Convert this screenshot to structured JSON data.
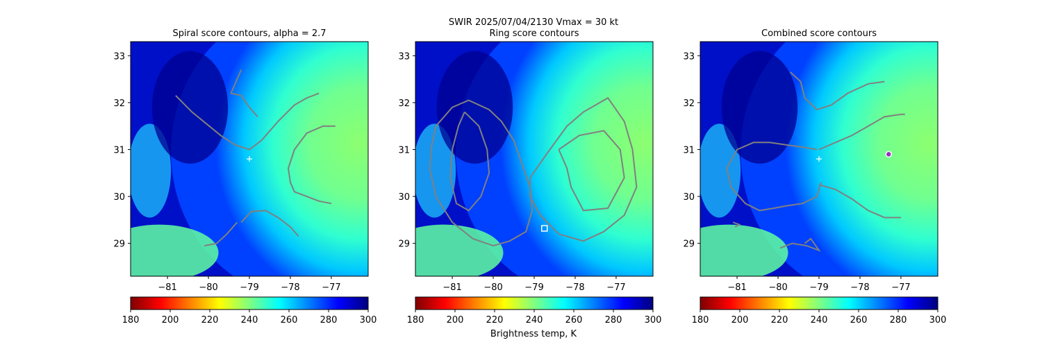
{
  "figure": {
    "suptitle": "SWIR  2025/07/04/2130    Vmax = 30 kt",
    "colorbar_label": "Brightness temp, K"
  },
  "chart_data": [
    {
      "type": "heatmap",
      "title": "Spiral score contours, alpha =  2.7",
      "xlim": [
        -81.9,
        -76.1
      ],
      "ylim": [
        28.3,
        33.3
      ],
      "xticks": [
        -81,
        -80,
        -79,
        -78,
        -77
      ],
      "xtick_labels": [
        "−81",
        "−80",
        "−79",
        "−78",
        "−77"
      ],
      "yticks": [
        29,
        30,
        31,
        32,
        33
      ],
      "ytick_labels": [
        "29",
        "30",
        "31",
        "32",
        "33"
      ],
      "colormap": "jet_r",
      "value_range": [
        180,
        300
      ],
      "colorbar_ticks": [
        "180",
        "200",
        "220",
        "240",
        "260",
        "280",
        "300"
      ],
      "markers": [
        {
          "symbol": "plus",
          "lon": -79.0,
          "lat": 30.8,
          "color": "#ffffff"
        }
      ],
      "contours": [
        [
          [
            -79.2,
            32.7
          ],
          [
            -79.3,
            32.5
          ],
          [
            -79.45,
            32.2
          ],
          [
            -79.2,
            32.15
          ],
          [
            -79.0,
            31.9
          ],
          [
            -78.8,
            31.7
          ]
        ],
        [
          [
            -80.8,
            32.15
          ],
          [
            -80.4,
            31.8
          ],
          [
            -80.05,
            31.55
          ],
          [
            -79.7,
            31.3
          ],
          [
            -79.35,
            31.1
          ],
          [
            -79.0,
            31.0
          ],
          [
            -78.7,
            31.2
          ],
          [
            -78.3,
            31.6
          ],
          [
            -77.9,
            31.95
          ],
          [
            -77.6,
            32.1
          ],
          [
            -77.3,
            32.2
          ]
        ],
        [
          [
            -76.9,
            31.5
          ],
          [
            -77.2,
            31.5
          ],
          [
            -77.6,
            31.35
          ],
          [
            -77.9,
            31.0
          ],
          [
            -78.05,
            30.6
          ],
          [
            -78.0,
            30.3
          ],
          [
            -77.9,
            30.1
          ],
          [
            -77.6,
            30.0
          ],
          [
            -77.3,
            29.9
          ],
          [
            -77.0,
            29.85
          ]
        ],
        [
          [
            -79.2,
            29.45
          ],
          [
            -78.95,
            29.68
          ],
          [
            -78.6,
            29.7
          ],
          [
            -78.3,
            29.55
          ],
          [
            -78.0,
            29.35
          ],
          [
            -77.8,
            29.15
          ]
        ],
        [
          [
            -80.1,
            28.95
          ],
          [
            -79.8,
            29.0
          ],
          [
            -79.55,
            29.2
          ],
          [
            -79.3,
            29.45
          ]
        ]
      ]
    },
    {
      "type": "heatmap",
      "title": "Ring score contours",
      "xlim": [
        -81.9,
        -76.1
      ],
      "ylim": [
        28.3,
        33.3
      ],
      "xticks": [
        -81,
        -80,
        -79,
        -78,
        -77
      ],
      "xtick_labels": [
        "−81",
        "−80",
        "−79",
        "−78",
        "−77"
      ],
      "yticks": [
        29,
        30,
        31,
        32,
        33
      ],
      "ytick_labels": [
        "29",
        "30",
        "31",
        "32",
        "33"
      ],
      "colormap": "jet_r",
      "value_range": [
        180,
        300
      ],
      "colorbar_ticks": [
        "180",
        "200",
        "220",
        "240",
        "260",
        "280",
        "300"
      ],
      "markers": [
        {
          "symbol": "square",
          "lon": -78.75,
          "lat": 29.32,
          "color": "#ffffff"
        }
      ],
      "contours": [
        [
          [
            -81.4,
            31.5
          ],
          [
            -81.0,
            31.9
          ],
          [
            -80.6,
            32.05
          ],
          [
            -80.1,
            31.85
          ],
          [
            -79.8,
            31.6
          ],
          [
            -79.5,
            31.2
          ],
          [
            -79.3,
            30.7
          ],
          [
            -79.1,
            30.2
          ],
          [
            -79.05,
            29.7
          ],
          [
            -79.2,
            29.25
          ],
          [
            -79.6,
            29.05
          ],
          [
            -80.0,
            28.95
          ],
          [
            -80.5,
            29.1
          ],
          [
            -81.0,
            29.45
          ],
          [
            -81.4,
            30.0
          ],
          [
            -81.55,
            30.6
          ],
          [
            -81.5,
            31.1
          ],
          [
            -81.4,
            31.5
          ]
        ],
        [
          [
            -80.7,
            31.8
          ],
          [
            -80.35,
            31.5
          ],
          [
            -80.15,
            31.0
          ],
          [
            -80.1,
            30.5
          ],
          [
            -80.3,
            30.0
          ],
          [
            -80.6,
            29.7
          ],
          [
            -80.9,
            29.85
          ],
          [
            -81.05,
            30.4
          ],
          [
            -81.0,
            31.0
          ],
          [
            -80.85,
            31.5
          ],
          [
            -80.7,
            31.8
          ]
        ],
        [
          [
            -79.1,
            30.4
          ],
          [
            -78.7,
            30.9
          ],
          [
            -78.2,
            31.5
          ],
          [
            -77.8,
            31.8
          ],
          [
            -77.2,
            32.1
          ],
          [
            -76.8,
            31.6
          ],
          [
            -76.6,
            31.0
          ],
          [
            -76.5,
            30.2
          ],
          [
            -76.8,
            29.6
          ],
          [
            -77.3,
            29.25
          ],
          [
            -77.8,
            29.05
          ],
          [
            -78.4,
            29.2
          ],
          [
            -78.85,
            29.6
          ],
          [
            -79.1,
            30.0
          ],
          [
            -79.1,
            30.4
          ]
        ],
        [
          [
            -78.4,
            31.0
          ],
          [
            -77.9,
            31.3
          ],
          [
            -77.3,
            31.4
          ],
          [
            -76.9,
            31.0
          ],
          [
            -76.8,
            30.4
          ],
          [
            -77.2,
            29.75
          ],
          [
            -77.8,
            29.7
          ],
          [
            -78.1,
            30.2
          ],
          [
            -78.2,
            30.6
          ],
          [
            -78.4,
            31.0
          ]
        ]
      ]
    },
    {
      "type": "heatmap",
      "title": "Combined score contours",
      "xlim": [
        -81.9,
        -76.1
      ],
      "ylim": [
        28.3,
        33.3
      ],
      "xticks": [
        -81,
        -80,
        -79,
        -78,
        -77
      ],
      "xtick_labels": [
        "−81",
        "−80",
        "−79",
        "−78",
        "−77"
      ],
      "yticks": [
        29,
        30,
        31,
        32,
        33
      ],
      "ytick_labels": [
        "29",
        "30",
        "31",
        "32",
        "33"
      ],
      "colormap": "jet_r",
      "value_range": [
        180,
        300
      ],
      "colorbar_ticks": [
        "180",
        "200",
        "220",
        "240",
        "260",
        "280",
        "300"
      ],
      "markers": [
        {
          "symbol": "plus",
          "lon": -79.0,
          "lat": 30.8,
          "color": "#ffffff"
        },
        {
          "symbol": "circle",
          "lon": -77.3,
          "lat": 30.9,
          "color": "#9a2cc0"
        }
      ],
      "contours": [
        [
          [
            -79.7,
            32.65
          ],
          [
            -79.45,
            32.45
          ],
          [
            -79.35,
            32.1
          ],
          [
            -79.05,
            31.85
          ],
          [
            -78.7,
            31.95
          ],
          [
            -78.3,
            32.2
          ],
          [
            -77.8,
            32.4
          ],
          [
            -77.4,
            32.45
          ]
        ],
        [
          [
            -79.0,
            31.0
          ],
          [
            -78.6,
            31.15
          ],
          [
            -78.2,
            31.3
          ],
          [
            -77.8,
            31.5
          ],
          [
            -77.4,
            31.7
          ],
          [
            -77.0,
            31.75
          ],
          [
            -76.9,
            31.75
          ]
        ],
        [
          [
            -79.05,
            31.0
          ],
          [
            -79.4,
            31.05
          ],
          [
            -79.8,
            31.1
          ],
          [
            -80.2,
            31.15
          ],
          [
            -80.6,
            31.15
          ],
          [
            -81.0,
            31.0
          ],
          [
            -81.25,
            30.6
          ],
          [
            -81.15,
            30.2
          ],
          [
            -80.8,
            29.85
          ],
          [
            -80.45,
            29.7
          ],
          [
            -80.1,
            29.75
          ],
          [
            -79.8,
            29.8
          ],
          [
            -79.4,
            29.85
          ],
          [
            -79.05,
            30.0
          ],
          [
            -78.95,
            30.3
          ]
        ],
        [
          [
            -79.0,
            30.25
          ],
          [
            -78.6,
            30.15
          ],
          [
            -78.2,
            29.95
          ],
          [
            -77.8,
            29.7
          ],
          [
            -77.4,
            29.55
          ],
          [
            -77.0,
            29.55
          ]
        ],
        [
          [
            -81.1,
            29.45
          ],
          [
            -80.95,
            29.4
          ],
          [
            -81.05,
            29.35
          ]
        ],
        [
          [
            -79.95,
            28.9
          ],
          [
            -79.65,
            29.0
          ],
          [
            -79.3,
            28.95
          ],
          [
            -79.0,
            28.85
          ],
          [
            -79.2,
            29.1
          ],
          [
            -79.35,
            29.0
          ]
        ]
      ]
    }
  ]
}
